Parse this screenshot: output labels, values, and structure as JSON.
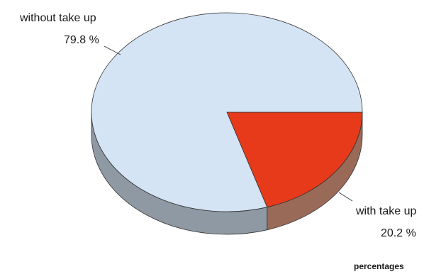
{
  "chart_data": {
    "type": "pie",
    "style": "3d",
    "slices": [
      {
        "label": "without take up",
        "value": 79.8,
        "value_text": "79.8 %",
        "color": "#d4e4f4",
        "side_color": "#8f99a3"
      },
      {
        "label": "with take up",
        "value": 20.2,
        "value_text": "20.2 %",
        "color": "#e63a1a",
        "side_color": "#9a6a58"
      }
    ],
    "note": "percentages"
  }
}
